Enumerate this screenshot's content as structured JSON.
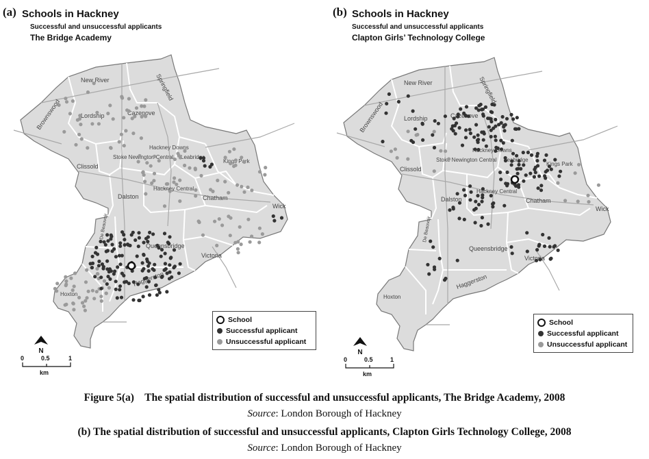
{
  "panels": [
    {
      "id": "a",
      "letter": "(a)",
      "title": "Schools in Hackney",
      "subtitle": "Successful and unsuccessful applicants",
      "school_name": "The Bridge Academy",
      "area_labels": [
        "New River",
        "Brownswood",
        "Springfield",
        "Lordship",
        "Cazenove",
        "Stoke Newington Central",
        "Hackney Downs",
        "Leabridge",
        "Kings Park",
        "Clissold",
        "Dalston",
        "Hackney Central",
        "Chatham",
        "Wick",
        "Queensbridge",
        "Victoria",
        "Haggerston",
        "Hoxton",
        "De Beauvoir"
      ],
      "legend": {
        "school": "School",
        "successful": "Successful applicant",
        "unsuccessful": "Unsuccessful applicant"
      },
      "scale": {
        "ticks": [
          "0",
          "0.5",
          "1"
        ],
        "unit": "km"
      },
      "north_label": "N"
    },
    {
      "id": "b",
      "letter": "(b)",
      "title": "Schools in Hackney",
      "subtitle": "Successful and unsuccessful applicants",
      "school_name": "Clapton Girls’ Technology College",
      "area_labels": [
        "New River",
        "Brownswood",
        "Springfield",
        "Lordship",
        "Cazenove",
        "Stoke Newington Central",
        "Hackney Downs",
        "Leabridge",
        "Kings Park",
        "Clissold",
        "Dalston",
        "Hackney Central",
        "Chatham",
        "Wick",
        "Queensbridge",
        "Victoria",
        "Haggerston",
        "Hoxton",
        "De Beauvoir"
      ],
      "legend": {
        "school": "School",
        "successful": "Successful applicant",
        "unsuccessful": "Unsuccessful applicant"
      },
      "scale": {
        "ticks": [
          "0",
          "0.5",
          "1"
        ],
        "unit": "km"
      },
      "north_label": "N"
    }
  ],
  "caption": {
    "line1_label": "Figure 5(a)",
    "line1_text": "The spatial distribution of successful and unsuccessful applicants, The Bridge Academy, 2008",
    "source_label": "Source",
    "source_text": ": London Borough of Hackney",
    "line3_text": "(b) The spatial distribution of successful and unsuccessful applicants, Clapton Girls Technology College, 2008"
  },
  "colors": {
    "borough_fill": "#dcdcdc",
    "ward_line": "#ffffff",
    "road_line": "#a8a8a8",
    "successful": "#333333",
    "unsuccessful": "#9a9a9a"
  }
}
